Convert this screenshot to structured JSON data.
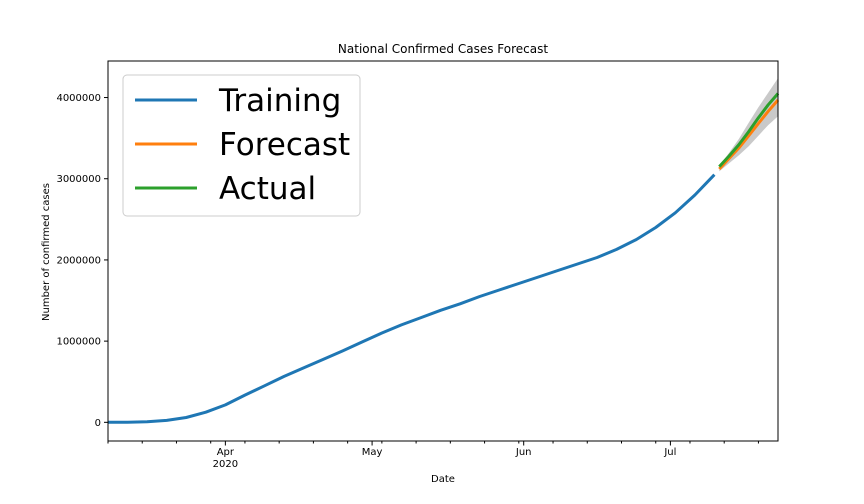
{
  "chart_data": {
    "type": "line",
    "title": "National Confirmed Cases Forecast",
    "xlabel": "Date",
    "ylabel": "Number of confirmed cases",
    "x_range": [
      "2020-03-08",
      "2020-07-23"
    ],
    "ylim": [
      -230000,
      4450000
    ],
    "y_ticks": [
      0,
      1000000,
      2000000,
      3000000,
      4000000
    ],
    "y_tick_labels": [
      "0",
      "1000000",
      "2000000",
      "3000000",
      "4000000"
    ],
    "x_major_ticks": [
      {
        "date": "2020-04-01",
        "label": "Apr",
        "sublabel": "2020"
      },
      {
        "date": "2020-05-01",
        "label": "May",
        "sublabel": ""
      },
      {
        "date": "2020-06-01",
        "label": "Jun",
        "sublabel": ""
      },
      {
        "date": "2020-07-01",
        "label": "Jul",
        "sublabel": ""
      }
    ],
    "x_minor_ticks": [
      "2020-03-08",
      "2020-03-15",
      "2020-03-22",
      "2020-03-29",
      "2020-04-05",
      "2020-04-12",
      "2020-04-19",
      "2020-04-26",
      "2020-05-03",
      "2020-05-10",
      "2020-05-17",
      "2020-05-24",
      "2020-05-31",
      "2020-06-07",
      "2020-06-14",
      "2020-06-21",
      "2020-06-28",
      "2020-07-05",
      "2020-07-12",
      "2020-07-19"
    ],
    "grid": false,
    "legend_position": "top-left",
    "series": [
      {
        "name": "Training",
        "color": "#1f77b4",
        "points": [
          [
            "2020-03-08",
            500
          ],
          [
            "2020-03-12",
            1700
          ],
          [
            "2020-03-16",
            6000
          ],
          [
            "2020-03-20",
            24000
          ],
          [
            "2020-03-24",
            60000
          ],
          [
            "2020-03-28",
            125000
          ],
          [
            "2020-04-01",
            215000
          ],
          [
            "2020-04-05",
            335000
          ],
          [
            "2020-04-09",
            450000
          ],
          [
            "2020-04-13",
            565000
          ],
          [
            "2020-04-17",
            670000
          ],
          [
            "2020-04-21",
            775000
          ],
          [
            "2020-04-25",
            880000
          ],
          [
            "2020-04-29",
            990000
          ],
          [
            "2020-05-03",
            1100000
          ],
          [
            "2020-05-07",
            1200000
          ],
          [
            "2020-05-11",
            1290000
          ],
          [
            "2020-05-15",
            1380000
          ],
          [
            "2020-05-19",
            1460000
          ],
          [
            "2020-05-23",
            1550000
          ],
          [
            "2020-05-27",
            1630000
          ],
          [
            "2020-05-31",
            1710000
          ],
          [
            "2020-06-04",
            1790000
          ],
          [
            "2020-06-08",
            1870000
          ],
          [
            "2020-06-12",
            1950000
          ],
          [
            "2020-06-16",
            2030000
          ],
          [
            "2020-06-20",
            2130000
          ],
          [
            "2020-06-24",
            2250000
          ],
          [
            "2020-06-28",
            2400000
          ],
          [
            "2020-07-02",
            2580000
          ],
          [
            "2020-07-06",
            2800000
          ],
          [
            "2020-07-10",
            3050000
          ]
        ]
      },
      {
        "name": "Forecast",
        "color": "#ff7f0e",
        "points": [
          [
            "2020-07-11",
            3120000
          ],
          [
            "2020-07-13",
            3250000
          ],
          [
            "2020-07-15",
            3380000
          ],
          [
            "2020-07-17",
            3530000
          ],
          [
            "2020-07-19",
            3680000
          ],
          [
            "2020-07-21",
            3830000
          ],
          [
            "2020-07-23",
            3970000
          ]
        ]
      },
      {
        "name": "Actual",
        "color": "#2ca02c",
        "points": [
          [
            "2020-07-11",
            3150000
          ],
          [
            "2020-07-13",
            3280000
          ],
          [
            "2020-07-15",
            3420000
          ],
          [
            "2020-07-17",
            3580000
          ],
          [
            "2020-07-19",
            3750000
          ],
          [
            "2020-07-21",
            3910000
          ],
          [
            "2020-07-23",
            4050000
          ]
        ]
      }
    ],
    "confidence_band": {
      "color": "#888888",
      "points": [
        [
          "2020-07-11",
          3090000,
          3160000
        ],
        [
          "2020-07-13",
          3190000,
          3320000
        ],
        [
          "2020-07-15",
          3290000,
          3490000
        ],
        [
          "2020-07-17",
          3400000,
          3690000
        ],
        [
          "2020-07-19",
          3530000,
          3880000
        ],
        [
          "2020-07-21",
          3660000,
          4060000
        ],
        [
          "2020-07-23",
          3770000,
          4240000
        ]
      ]
    }
  }
}
